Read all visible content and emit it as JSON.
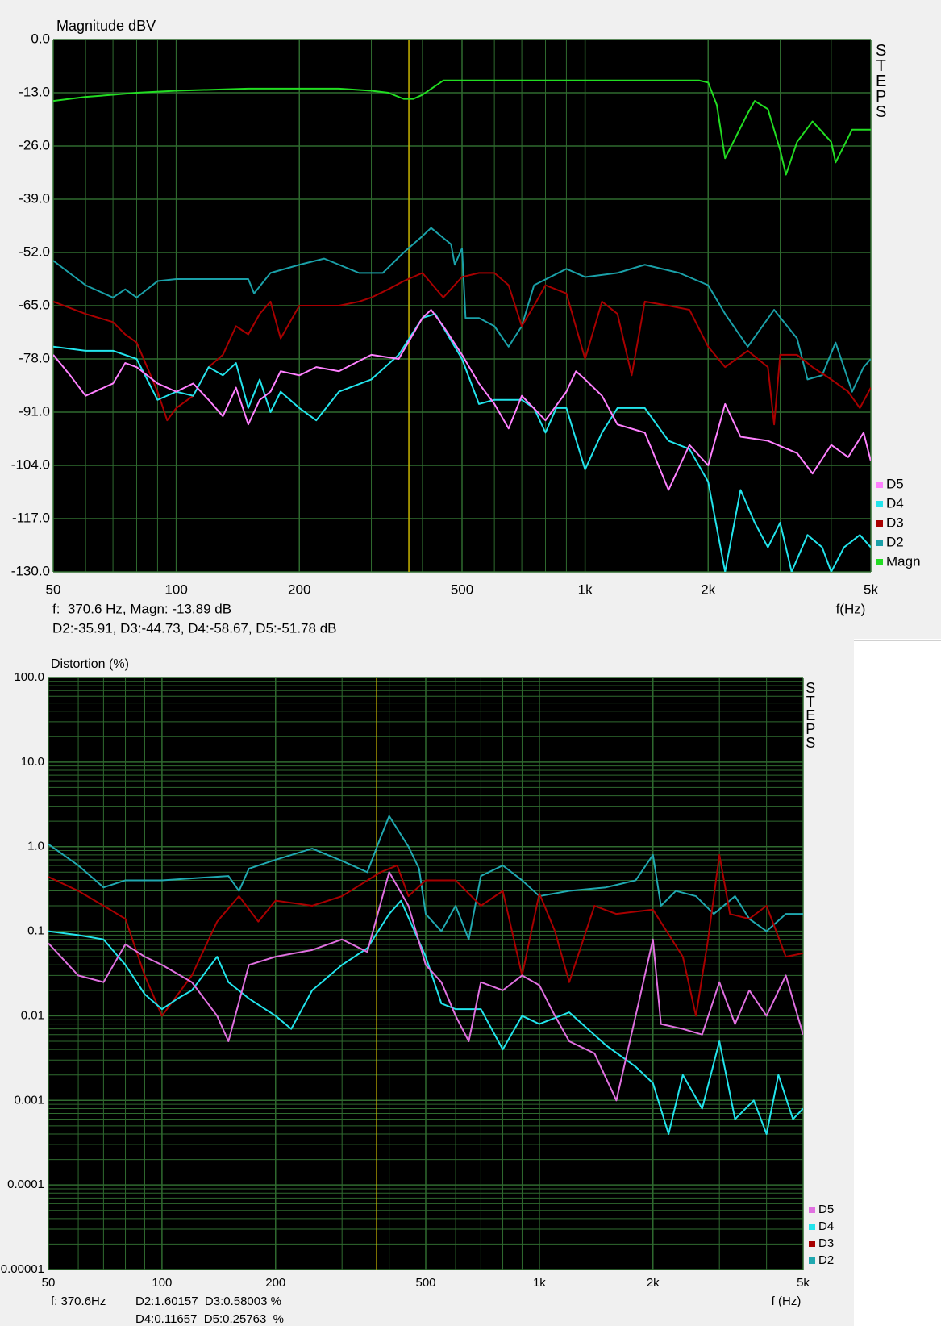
{
  "chart_data": [
    {
      "type": "line",
      "title": "Magnitude dBV",
      "xlabel": "f(Hz)",
      "steps_label": "STEPS",
      "xscale": "log",
      "yscale": "linear",
      "xlim": [
        50,
        5000
      ],
      "ylim": [
        -130,
        0
      ],
      "xticks": [
        50,
        100,
        200,
        500,
        {
          "value": 1000,
          "label": "1k"
        },
        {
          "value": 2000,
          "label": "2k"
        },
        {
          "value": 5000,
          "label": "5k"
        }
      ],
      "xminor": [
        60,
        70,
        80,
        90,
        300,
        400,
        600,
        700,
        800,
        900,
        3000,
        4000
      ],
      "yticks": [
        {
          "value": 0,
          "label": "0.0"
        },
        {
          "value": -13,
          "label": "-13.0"
        },
        {
          "value": -26,
          "label": "-26.0"
        },
        {
          "value": -39,
          "label": "-39.0"
        },
        {
          "value": -52,
          "label": "-52.0"
        },
        {
          "value": -65,
          "label": "-65.0"
        },
        {
          "value": -78,
          "label": "-78.0"
        },
        {
          "value": -91,
          "label": "-91.0"
        },
        {
          "value": -104,
          "label": "-104.0"
        },
        {
          "value": -117,
          "label": "-117.0"
        },
        {
          "value": -130,
          "label": "-130.0"
        }
      ],
      "grid": true,
      "grid_color": "#2f6a2f",
      "background": "#000000",
      "legend": "bottom-right",
      "cursor": {
        "x": 370.6,
        "color": "#c8b400"
      },
      "readout": [
        "f:  370.6 Hz, Magn: -13.89 dB",
        "D2:-35.91, D3:-44.73, D4:-58.67, D5:-51.78 dB"
      ],
      "series": [
        {
          "name": "Magn",
          "color": "#22dd22",
          "x": [
            50,
            60,
            70,
            80,
            100,
            150,
            200,
            250,
            300,
            330,
            360,
            380,
            400,
            450,
            500,
            700,
            1000,
            1500,
            1900,
            2000,
            2100,
            2200,
            2500,
            2600,
            2800,
            3000,
            3100,
            3300,
            3600,
            4000,
            4100,
            4500,
            5000
          ],
          "values": [
            -15,
            -14,
            -13.5,
            -13,
            -12.5,
            -12,
            -12,
            -12,
            -12.5,
            -13,
            -14.5,
            -14.5,
            -13.5,
            -10,
            -10,
            -10,
            -10,
            -10,
            -10,
            -10.5,
            -16,
            -29,
            -18,
            -15,
            -17,
            -27,
            -33,
            -25,
            -20,
            -25,
            -30,
            -22,
            -22
          ]
        },
        {
          "name": "D2",
          "color": "#1aa0a8",
          "x": [
            50,
            60,
            70,
            75,
            80,
            90,
            100,
            150,
            155,
            170,
            200,
            230,
            280,
            320,
            360,
            400,
            420,
            470,
            480,
            500,
            510,
            550,
            600,
            650,
            700,
            750,
            900,
            1000,
            1200,
            1400,
            1700,
            2000,
            2200,
            2500,
            2900,
            3300,
            3500,
            3800,
            4100,
            4500,
            4800,
            5000
          ],
          "values": [
            -54,
            -60,
            -63,
            -61,
            -63,
            -59,
            -58.5,
            -58.5,
            -62,
            -57,
            -55,
            -53.5,
            -57,
            -57,
            -52,
            -48,
            -46,
            -50,
            -55,
            -51,
            -68,
            -68,
            -70,
            -75,
            -70,
            -60,
            -56,
            -58,
            -57,
            -55,
            -57,
            -60,
            -67,
            -75,
            -66,
            -73,
            -83,
            -82,
            -74,
            -86,
            -80,
            -78
          ]
        },
        {
          "name": "D3",
          "color": "#a80000",
          "x": [
            50,
            60,
            70,
            75,
            80,
            90,
            95,
            100,
            110,
            120,
            130,
            140,
            150,
            160,
            170,
            180,
            200,
            250,
            280,
            300,
            330,
            360,
            400,
            450,
            500,
            550,
            600,
            650,
            700,
            750,
            800,
            900,
            1000,
            1100,
            1200,
            1300,
            1400,
            1600,
            1800,
            2000,
            2200,
            2500,
            2800,
            2900,
            3000,
            3300,
            3600,
            4000,
            4400,
            4700,
            5000
          ],
          "values": [
            -64,
            -67,
            -69,
            -72,
            -74,
            -86,
            -93,
            -90,
            -87,
            -80,
            -77,
            -70,
            -72,
            -67,
            -64,
            -73,
            -65,
            -65,
            -64,
            -63,
            -61,
            -59,
            -57,
            -63,
            -58,
            -57,
            -57,
            -60,
            -70,
            -65,
            -60,
            -62,
            -78,
            -64,
            -67,
            -82,
            -64,
            -65,
            -66,
            -75,
            -80,
            -76,
            -80,
            -94,
            -77,
            -77,
            -80,
            -83,
            -86,
            -90,
            -85
          ]
        },
        {
          "name": "D4",
          "color": "#22e4ec",
          "x": [
            50,
            60,
            70,
            80,
            90,
            100,
            110,
            120,
            130,
            140,
            150,
            160,
            170,
            180,
            200,
            220,
            250,
            300,
            350,
            400,
            430,
            500,
            550,
            600,
            700,
            750,
            800,
            850,
            900,
            1000,
            1100,
            1200,
            1400,
            1600,
            1800,
            2000,
            2200,
            2400,
            2600,
            2800,
            3000,
            3200,
            3500,
            3800,
            4000,
            4300,
            4700,
            5000
          ],
          "values": [
            -75,
            -76,
            -76,
            -78,
            -88,
            -86,
            -87,
            -80,
            -82,
            -79,
            -90,
            -83,
            -91,
            -86,
            -90,
            -93,
            -86,
            -83,
            -77,
            -68,
            -67,
            -78,
            -89,
            -88,
            -88,
            -90,
            -96,
            -90,
            -90,
            -105,
            -96,
            -90,
            -90,
            -98,
            -100,
            -108,
            -130,
            -110,
            -118,
            -124,
            -118,
            -130,
            -121,
            -124,
            -130,
            -124,
            -121,
            -124
          ]
        },
        {
          "name": "D5",
          "color": "#ff80ff",
          "x": [
            50,
            55,
            60,
            70,
            75,
            80,
            90,
            100,
            110,
            120,
            130,
            140,
            150,
            160,
            170,
            180,
            200,
            220,
            250,
            300,
            350,
            400,
            420,
            450,
            500,
            550,
            600,
            650,
            700,
            800,
            900,
            950,
            1000,
            1100,
            1200,
            1400,
            1600,
            1800,
            2000,
            2200,
            2400,
            2800,
            3300,
            3600,
            4000,
            4400,
            4800,
            5000
          ],
          "values": [
            -77,
            -82,
            -87,
            -84,
            -79,
            -80,
            -84,
            -86,
            -84,
            -88,
            -92,
            -85,
            -94,
            -88,
            -86,
            -81,
            -82,
            -80,
            -81,
            -77,
            -78,
            -68,
            -66,
            -70,
            -77,
            -84,
            -89,
            -95,
            -87,
            -93,
            -86,
            -81,
            -83,
            -87,
            -94,
            -96,
            -110,
            -99,
            -104,
            -89,
            -97,
            -98,
            -101,
            -106,
            -99,
            -102,
            -96,
            -103
          ]
        }
      ]
    },
    {
      "type": "line",
      "title": "Distortion (%)",
      "xlabel": "f (Hz)",
      "steps_label": "STEPS",
      "xscale": "log",
      "yscale": "log",
      "xlim": [
        50,
        5000
      ],
      "ylim": [
        1e-05,
        100
      ],
      "xticks": [
        50,
        100,
        200,
        500,
        {
          "value": 1000,
          "label": "1k"
        },
        {
          "value": 2000,
          "label": "2k"
        },
        {
          "value": 5000,
          "label": "5k"
        }
      ],
      "xminor": [
        60,
        70,
        80,
        90,
        300,
        400,
        600,
        700,
        800,
        900,
        3000,
        4000
      ],
      "yticks": [
        {
          "value": 100,
          "label": "100.0"
        },
        {
          "value": 10,
          "label": "10.0"
        },
        {
          "value": 1,
          "label": "1.0"
        },
        0.1,
        0.01,
        0.001,
        0.0001,
        1e-05
      ],
      "yminor": [
        2e-05,
        3e-05,
        4e-05,
        5e-05,
        6e-05,
        7e-05,
        8e-05,
        9e-05,
        0.0002,
        0.0003,
        0.0004,
        0.0005,
        0.0006,
        0.0007,
        0.0008,
        0.0009,
        0.002,
        0.003,
        0.004,
        0.005,
        0.006,
        0.007,
        0.008,
        0.009,
        0.02,
        0.03,
        0.04,
        0.05,
        0.06,
        0.07,
        0.08,
        0.09,
        0.2,
        0.3,
        0.4,
        0.5,
        0.6,
        0.7,
        0.8,
        0.9,
        2,
        3,
        4,
        5,
        6,
        7,
        8,
        9,
        20,
        30,
        40,
        50,
        60,
        70,
        80,
        90
      ],
      "grid": true,
      "grid_color": "#2f6a2f",
      "background": "#000000",
      "legend": "bottom-right",
      "cursor": {
        "x": 370.6,
        "color": "#c8b400"
      },
      "readout": [
        "f: 370.6Hz",
        "D2:1.60157  D3:0.58003 %",
        "D4:0.11657  D5:0.25763  %"
      ],
      "series": [
        {
          "name": "D2",
          "color": "#20a8b0",
          "x": [
            50,
            60,
            70,
            80,
            100,
            150,
            160,
            170,
            200,
            250,
            300,
            350,
            380,
            400,
            450,
            480,
            500,
            550,
            600,
            650,
            700,
            800,
            900,
            1000,
            1200,
            1500,
            1800,
            2000,
            2100,
            2300,
            2600,
            2900,
            3300,
            3600,
            4000,
            4500,
            5000
          ],
          "values": [
            1.07,
            0.6,
            0.33,
            0.4,
            0.4,
            0.45,
            0.3,
            0.55,
            0.7,
            0.95,
            0.68,
            0.5,
            1.3,
            2.3,
            1.0,
            0.55,
            0.16,
            0.1,
            0.2,
            0.08,
            0.45,
            0.6,
            0.4,
            0.26,
            0.3,
            0.33,
            0.4,
            0.8,
            0.2,
            0.3,
            0.26,
            0.16,
            0.26,
            0.14,
            0.1,
            0.16,
            0.16
          ]
        },
        {
          "name": "D3",
          "color": "#a80000",
          "x": [
            50,
            60,
            70,
            80,
            90,
            100,
            120,
            140,
            160,
            180,
            200,
            250,
            300,
            380,
            420,
            450,
            500,
            600,
            700,
            800,
            900,
            1000,
            1100,
            1200,
            1400,
            1600,
            2000,
            2400,
            2600,
            2800,
            3000,
            3200,
            3600,
            4000,
            4500,
            5000
          ],
          "values": [
            0.44,
            0.3,
            0.2,
            0.14,
            0.03,
            0.01,
            0.03,
            0.13,
            0.26,
            0.13,
            0.23,
            0.2,
            0.26,
            0.5,
            0.6,
            0.26,
            0.4,
            0.4,
            0.2,
            0.3,
            0.03,
            0.28,
            0.1,
            0.025,
            0.2,
            0.16,
            0.18,
            0.05,
            0.01,
            0.08,
            0.8,
            0.16,
            0.14,
            0.2,
            0.05,
            0.055
          ]
        },
        {
          "name": "D4",
          "color": "#22e4ec",
          "x": [
            50,
            60,
            70,
            80,
            90,
            100,
            110,
            120,
            140,
            150,
            170,
            200,
            220,
            250,
            300,
            350,
            400,
            430,
            500,
            550,
            600,
            700,
            800,
            900,
            1000,
            1200,
            1500,
            1800,
            2000,
            2200,
            2400,
            2700,
            3000,
            3300,
            3700,
            4000,
            4300,
            4700,
            5000
          ],
          "values": [
            0.1,
            0.09,
            0.08,
            0.04,
            0.018,
            0.012,
            0.016,
            0.02,
            0.05,
            0.025,
            0.016,
            0.01,
            0.007,
            0.02,
            0.04,
            0.063,
            0.16,
            0.23,
            0.05,
            0.014,
            0.012,
            0.012,
            0.004,
            0.01,
            0.008,
            0.011,
            0.0045,
            0.0025,
            0.0016,
            0.0004,
            0.002,
            0.0008,
            0.005,
            0.0006,
            0.001,
            0.0004,
            0.002,
            0.0006,
            0.0008
          ]
        },
        {
          "name": "D5",
          "color": "#e070e0",
          "x": [
            50,
            60,
            70,
            80,
            90,
            100,
            120,
            140,
            150,
            170,
            200,
            250,
            300,
            350,
            400,
            450,
            500,
            550,
            600,
            650,
            700,
            800,
            900,
            1000,
            1100,
            1200,
            1400,
            1600,
            1800,
            2000,
            2100,
            2400,
            2700,
            3000,
            3300,
            3600,
            4000,
            4500,
            5000
          ],
          "values": [
            0.072,
            0.03,
            0.025,
            0.07,
            0.05,
            0.04,
            0.025,
            0.01,
            0.005,
            0.04,
            0.05,
            0.06,
            0.08,
            0.057,
            0.5,
            0.2,
            0.04,
            0.025,
            0.01,
            0.005,
            0.025,
            0.02,
            0.03,
            0.023,
            0.01,
            0.005,
            0.0036,
            0.001,
            0.01,
            0.08,
            0.008,
            0.007,
            0.006,
            0.025,
            0.008,
            0.02,
            0.01,
            0.03,
            0.006
          ]
        }
      ]
    }
  ]
}
